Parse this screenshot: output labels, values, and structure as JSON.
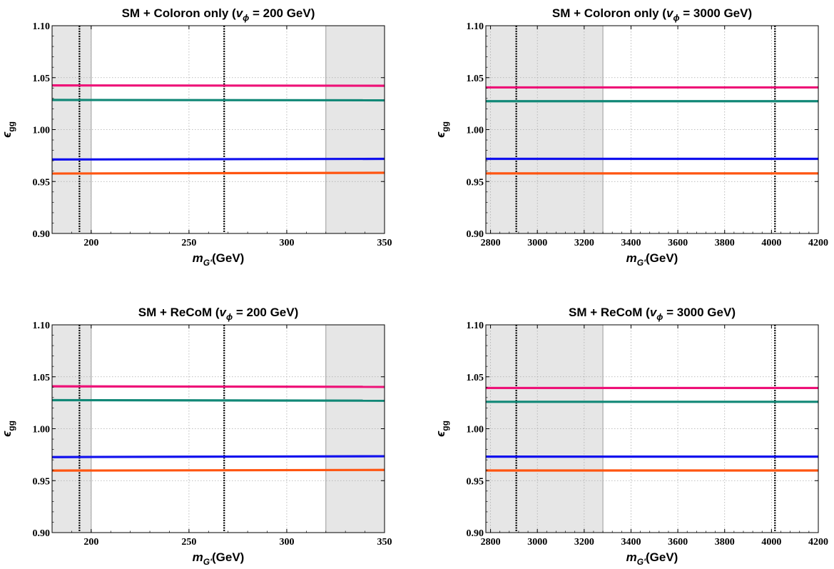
{
  "chart_data": [
    {
      "type": "line",
      "title": {
        "pre": "SM + Coloron only (",
        "var": "v",
        "sub": "ϕ",
        "post": " = 200 GeV)"
      },
      "xlabel": {
        "var": "m",
        "sub": "G'",
        "post": "(GeV)"
      },
      "ylabel": {
        "var": "ϵ",
        "sub": "gg"
      },
      "xlim": [
        180,
        350
      ],
      "ylim": [
        0.9,
        1.1
      ],
      "xticks": [
        200,
        250,
        300,
        350
      ],
      "xtick_labels": [
        "200",
        "250",
        "300",
        "350"
      ],
      "yticks": [
        0.9,
        0.95,
        1.0,
        1.05,
        1.1
      ],
      "ytick_labels": [
        "0.90",
        "0.95",
        "1.00",
        "1.05",
        "1.10"
      ],
      "grid": true,
      "shaded_regions": [
        [
          180,
          200
        ],
        [
          320,
          350
        ]
      ],
      "vlines": [
        194,
        268
      ],
      "series": [
        {
          "color": "#ee1177",
          "x": [
            180,
            350
          ],
          "y": [
            1.0425,
            1.0422
          ]
        },
        {
          "color": "#118877",
          "x": [
            180,
            350
          ],
          "y": [
            1.0285,
            1.0282
          ]
        },
        {
          "color": "#1111ee",
          "x": [
            180,
            350
          ],
          "y": [
            0.9712,
            0.9718
          ]
        },
        {
          "color": "#ff5511",
          "x": [
            180,
            350
          ],
          "y": [
            0.9577,
            0.9584
          ]
        }
      ]
    },
    {
      "type": "line",
      "title": {
        "pre": "SM + Coloron only (",
        "var": "v",
        "sub": "ϕ",
        "post": " = 3000 GeV)"
      },
      "xlabel": {
        "var": "m",
        "sub": "G'",
        "post": "(GeV)"
      },
      "ylabel": {
        "var": "ϵ",
        "sub": "gg"
      },
      "xlim": [
        2780,
        4200
      ],
      "ylim": [
        0.9,
        1.1
      ],
      "xticks": [
        2800,
        3000,
        3200,
        3400,
        3600,
        3800,
        4000,
        4200
      ],
      "xtick_labels": [
        "2800",
        "3000",
        "3200",
        "3400",
        "3600",
        "3800",
        "4000",
        "4200"
      ],
      "yticks": [
        0.9,
        0.95,
        1.0,
        1.05,
        1.1
      ],
      "ytick_labels": [
        "0.90",
        "0.95",
        "1.00",
        "1.05",
        "1.10"
      ],
      "grid": true,
      "shaded_regions": [
        [
          2780,
          3280
        ]
      ],
      "vlines": [
        2910,
        4015
      ],
      "series": [
        {
          "color": "#ee1177",
          "x": [
            2780,
            4200
          ],
          "y": [
            1.0406,
            1.0406
          ]
        },
        {
          "color": "#118877",
          "x": [
            2780,
            4200
          ],
          "y": [
            1.0273,
            1.0273
          ]
        },
        {
          "color": "#1111ee",
          "x": [
            2780,
            4200
          ],
          "y": [
            0.9718,
            0.9718
          ]
        },
        {
          "color": "#ff5511",
          "x": [
            2780,
            4200
          ],
          "y": [
            0.9578,
            0.9578
          ]
        }
      ]
    },
    {
      "type": "line",
      "title": {
        "pre": "SM + ReCoM (",
        "var": "v",
        "sub": "ϕ",
        "post": " = 200 GeV)"
      },
      "xlabel": {
        "var": "m",
        "sub": "G'",
        "post": "(GeV)"
      },
      "ylabel": {
        "var": "ϵ",
        "sub": "gg"
      },
      "xlim": [
        180,
        350
      ],
      "ylim": [
        0.9,
        1.1
      ],
      "xticks": [
        200,
        250,
        300,
        350
      ],
      "xtick_labels": [
        "200",
        "250",
        "300",
        "350"
      ],
      "yticks": [
        0.9,
        0.95,
        1.0,
        1.05,
        1.1
      ],
      "ytick_labels": [
        "0.90",
        "0.95",
        "1.00",
        "1.05",
        "1.10"
      ],
      "grid": true,
      "shaded_regions": [
        [
          180,
          200
        ],
        [
          320,
          350
        ]
      ],
      "vlines": [
        194,
        268
      ],
      "series": [
        {
          "color": "#ee1177",
          "x": [
            180,
            350
          ],
          "y": [
            1.0408,
            1.0403
          ]
        },
        {
          "color": "#118877",
          "x": [
            180,
            350
          ],
          "y": [
            1.0275,
            1.027
          ]
        },
        {
          "color": "#1111ee",
          "x": [
            180,
            350
          ],
          "y": [
            0.9727,
            0.9735
          ]
        },
        {
          "color": "#ff5511",
          "x": [
            180,
            350
          ],
          "y": [
            0.9597,
            0.9603
          ]
        }
      ]
    },
    {
      "type": "line",
      "title": {
        "pre": "SM + ReCoM (",
        "var": "v",
        "sub": "ϕ",
        "post": " = 3000 GeV)"
      },
      "xlabel": {
        "var": "m",
        "sub": "G'",
        "post": "(GeV)"
      },
      "ylabel": {
        "var": "ϵ",
        "sub": "gg"
      },
      "xlim": [
        2780,
        4200
      ],
      "ylim": [
        0.9,
        1.1
      ],
      "xticks": [
        2800,
        3000,
        3200,
        3400,
        3600,
        3800,
        4000,
        4200
      ],
      "xtick_labels": [
        "2800",
        "3000",
        "3200",
        "3400",
        "3600",
        "3800",
        "4000",
        "4200"
      ],
      "yticks": [
        0.9,
        0.95,
        1.0,
        1.05,
        1.1
      ],
      "ytick_labels": [
        "0.90",
        "0.95",
        "1.00",
        "1.05",
        "1.10"
      ],
      "grid": true,
      "shaded_regions": [
        [
          2780,
          3280
        ]
      ],
      "vlines": [
        2910,
        4015
      ],
      "series": [
        {
          "color": "#ee1177",
          "x": [
            2780,
            4200
          ],
          "y": [
            1.0392,
            1.0392
          ]
        },
        {
          "color": "#118877",
          "x": [
            2780,
            4200
          ],
          "y": [
            1.0259,
            1.0259
          ]
        },
        {
          "color": "#1111ee",
          "x": [
            2780,
            4200
          ],
          "y": [
            0.9731,
            0.9731
          ]
        },
        {
          "color": "#ff5511",
          "x": [
            2780,
            4200
          ],
          "y": [
            0.9598,
            0.9598
          ]
        }
      ]
    }
  ]
}
